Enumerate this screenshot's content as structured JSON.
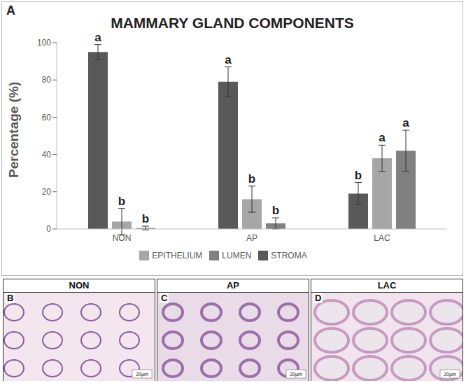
{
  "chart_data": {
    "type": "bar",
    "panel_label": "A",
    "title": "MAMMARY GLAND COMPONENTS",
    "y_label": "Percentage (%)",
    "categories": [
      "NON",
      "AP",
      "LAC"
    ],
    "series": [
      {
        "name": "STROMA",
        "color": "#595959",
        "values": [
          95,
          79,
          19
        ],
        "errors": [
          4,
          8,
          6
        ],
        "value_labels": [
          "a",
          "a",
          "b"
        ]
      },
      {
        "name": "EPITHELIUM",
        "color": "#a6a6a6",
        "values": [
          4,
          16,
          38
        ],
        "errors": [
          7,
          7,
          7
        ],
        "value_labels": [
          "b",
          "b",
          "a"
        ]
      },
      {
        "name": "LUMEN",
        "color": "#808080",
        "values": [
          0.5,
          3,
          42
        ],
        "errors": [
          1,
          3,
          11
        ],
        "value_labels": [
          "b",
          "b",
          "a"
        ]
      }
    ],
    "ylim": [
      0,
      100
    ],
    "yticks": [
      0,
      20,
      40,
      60,
      80,
      100
    ],
    "grid": false,
    "legend": "bottom",
    "data_labels": true
  },
  "panels": [
    {
      "letter": "B",
      "title": "NON",
      "scale_bar": "20µm"
    },
    {
      "letter": "C",
      "title": "AP",
      "scale_bar": "20µm"
    },
    {
      "letter": "D",
      "title": "LAC",
      "scale_bar": "20µm"
    }
  ]
}
